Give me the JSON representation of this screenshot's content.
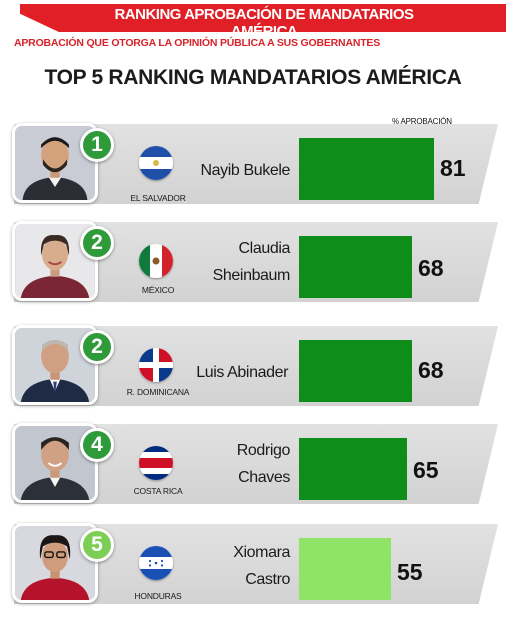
{
  "header": {
    "banner_title": "RANKING APROBACIÓN DE MANDATARIOS AMÉRICA",
    "subtitle": "APROBACIÓN QUE OTORGA LA OPINIÓN PÚBLICA A SUS GOBERNANTES",
    "main_title": "TOP 5 RANKING MANDATARIOS AMÉRICA",
    "column_label": "% APROBACIÓN"
  },
  "colors": {
    "banner_red": "#e01f26",
    "bar_green": "#0f8d1b",
    "bar_light_green": "#8fe366",
    "rank_green": "#2f9a3a",
    "row_gray": "#d2d2d2"
  },
  "rows": [
    {
      "rank": "1",
      "country": "EL SALVADOR",
      "name_line1": "Nayib Bukele",
      "name_line2": "",
      "approval": 81,
      "bar_color": "green",
      "flag_icon": "el-salvador-flag-icon"
    },
    {
      "rank": "2",
      "country": "MÉXICO",
      "name_line1": "Claudia",
      "name_line2": "Sheinbaum",
      "approval": 68,
      "bar_color": "green",
      "flag_icon": "mexico-flag-icon"
    },
    {
      "rank": "2",
      "country": "R. DOMINICANA",
      "name_line1": "Luis Abinader",
      "name_line2": "",
      "approval": 68,
      "bar_color": "green",
      "flag_icon": "dominican-republic-flag-icon"
    },
    {
      "rank": "4",
      "country": "COSTA RICA",
      "name_line1": "Rodrigo",
      "name_line2": "Chaves",
      "approval": 65,
      "bar_color": "green",
      "flag_icon": "costa-rica-flag-icon"
    },
    {
      "rank": "5",
      "country": "HONDURAS",
      "name_line1": "Xiomara",
      "name_line2": "Castro",
      "approval": 55,
      "bar_color": "light-green",
      "flag_icon": "honduras-flag-icon"
    }
  ]
}
